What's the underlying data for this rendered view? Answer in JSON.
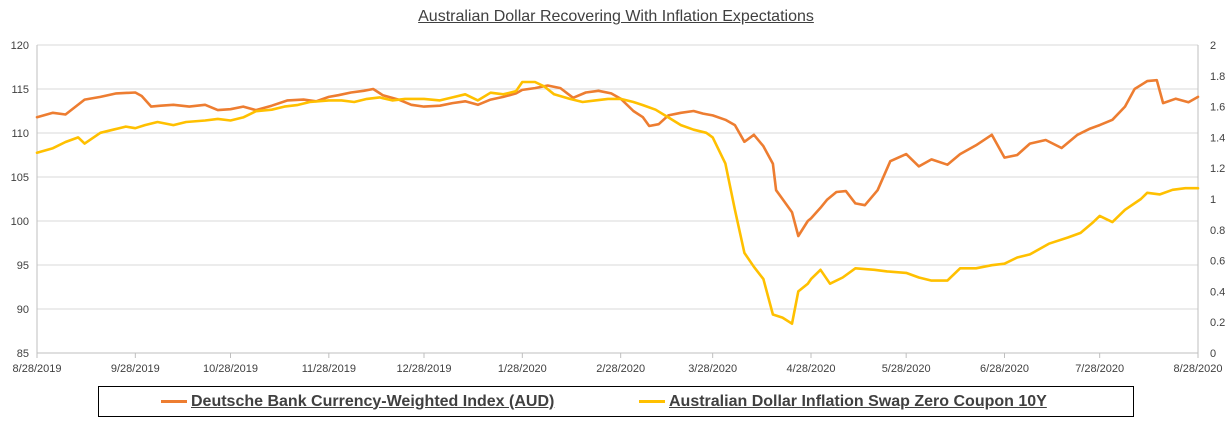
{
  "chart_data": {
    "type": "line",
    "title": "Australian Dollar Recovering With Inflation Expectations",
    "x_tick_labels": [
      "8/28/2019",
      "9/28/2019",
      "10/28/2019",
      "11/28/2019",
      "12/28/2019",
      "1/28/2020",
      "2/28/2020",
      "3/28/2020",
      "4/28/2020",
      "5/28/2020",
      "6/28/2020",
      "7/28/2020",
      "8/28/2020"
    ],
    "y_left": {
      "ylim": [
        85,
        120
      ],
      "ticks": [
        "85",
        "90",
        "95",
        "100",
        "105",
        "110",
        "115",
        "120"
      ]
    },
    "y_right": {
      "ylim": [
        0,
        2
      ],
      "ticks": [
        "0",
        "0.2",
        "0.4",
        "0.6",
        "0.8",
        "1",
        "1.2",
        "1.4",
        "1.6",
        "1.8",
        "2"
      ]
    },
    "grid": true,
    "legend_position": "bottom",
    "series": [
      {
        "name": "Deutsche Bank Currency-Weighted Index (AUD)",
        "axis": "left",
        "color": "#ED7D31",
        "points": [
          [
            "8/28/2019",
            111.8
          ],
          [
            "9/2/2019",
            112.3
          ],
          [
            "9/6/2019",
            112.1
          ],
          [
            "9/12/2019",
            113.8
          ],
          [
            "9/17/2019",
            114.1
          ],
          [
            "9/22/2019",
            114.5
          ],
          [
            "9/28/2019",
            114.6
          ],
          [
            "9/30/2019",
            114.2
          ],
          [
            "10/3/2019",
            113.0
          ],
          [
            "10/6/2019",
            113.1
          ],
          [
            "10/10/2019",
            113.2
          ],
          [
            "10/15/2019",
            113.0
          ],
          [
            "10/20/2019",
            113.2
          ],
          [
            "10/24/2019",
            112.6
          ],
          [
            "10/28/2019",
            112.7
          ],
          [
            "11/1/2019",
            113.0
          ],
          [
            "11/5/2019",
            112.6
          ],
          [
            "11/10/2019",
            113.1
          ],
          [
            "11/15/2019",
            113.7
          ],
          [
            "11/20/2019",
            113.8
          ],
          [
            "11/24/2019",
            113.6
          ],
          [
            "11/28/2019",
            114.1
          ],
          [
            "12/1/2019",
            114.3
          ],
          [
            "12/5/2019",
            114.6
          ],
          [
            "12/9/2019",
            114.8
          ],
          [
            "12/12/2019",
            115.0
          ],
          [
            "12/15/2019",
            114.3
          ],
          [
            "12/20/2019",
            113.8
          ],
          [
            "12/24/2019",
            113.2
          ],
          [
            "12/28/2019",
            113.0
          ],
          [
            "1/2/2020",
            113.1
          ],
          [
            "1/6/2020",
            113.4
          ],
          [
            "1/10/2020",
            113.6
          ],
          [
            "1/14/2020",
            113.2
          ],
          [
            "1/18/2020",
            113.8
          ],
          [
            "1/22/2020",
            114.1
          ],
          [
            "1/26/2020",
            114.5
          ],
          [
            "1/28/2020",
            114.9
          ],
          [
            "2/1/2020",
            115.1
          ],
          [
            "2/5/2020",
            115.4
          ],
          [
            "2/9/2020",
            115.1
          ],
          [
            "2/13/2020",
            114.0
          ],
          [
            "2/17/2020",
            114.6
          ],
          [
            "2/21/2020",
            114.8
          ],
          [
            "2/25/2020",
            114.5
          ],
          [
            "2/28/2020",
            113.9
          ],
          [
            "3/3/2020",
            112.5
          ],
          [
            "3/6/2020",
            111.8
          ],
          [
            "3/8/2020",
            110.8
          ],
          [
            "3/11/2020",
            111.0
          ],
          [
            "3/14/2020",
            112.0
          ],
          [
            "3/18/2020",
            112.3
          ],
          [
            "3/22/2020",
            112.5
          ],
          [
            "3/25/2020",
            112.2
          ],
          [
            "3/28/2020",
            112.0
          ],
          [
            "4/1/2020",
            111.5
          ],
          [
            "4/4/2020",
            110.9
          ],
          [
            "4/7/2020",
            109.0
          ],
          [
            "4/10/2020",
            109.8
          ],
          [
            "4/13/2020",
            108.5
          ],
          [
            "4/16/2020",
            106.5
          ],
          [
            "4/17/2020",
            103.5
          ],
          [
            "4/19/2020",
            102.5
          ],
          [
            "4/22/2020",
            101.0
          ],
          [
            "4/24/2020",
            98.3
          ],
          [
            "4/27/2020",
            100.0
          ],
          [
            "4/28/2020",
            100.3
          ],
          [
            "5/1/2020",
            101.5
          ],
          [
            "5/3/2020",
            102.4
          ],
          [
            "5/6/2020",
            103.3
          ],
          [
            "5/9/2020",
            103.4
          ],
          [
            "5/12/2020",
            102.0
          ],
          [
            "5/15/2020",
            101.8
          ],
          [
            "5/19/2020",
            103.5
          ],
          [
            "5/23/2020",
            106.8
          ],
          [
            "5/28/2020",
            107.6
          ],
          [
            "6/1/2020",
            106.2
          ],
          [
            "6/5/2020",
            107.0
          ],
          [
            "6/10/2020",
            106.4
          ],
          [
            "6/14/2020",
            107.6
          ],
          [
            "6/19/2020",
            108.6
          ],
          [
            "6/24/2020",
            109.8
          ],
          [
            "6/28/2020",
            107.2
          ],
          [
            "7/2/2020",
            107.5
          ],
          [
            "7/6/2020",
            108.8
          ],
          [
            "7/11/2020",
            109.2
          ],
          [
            "7/16/2020",
            108.3
          ],
          [
            "7/21/2020",
            109.8
          ],
          [
            "7/25/2020",
            110.5
          ],
          [
            "7/28/2020",
            110.9
          ],
          [
            "8/1/2020",
            111.5
          ],
          [
            "8/5/2020",
            113.0
          ],
          [
            "8/8/2020",
            115.0
          ],
          [
            "8/12/2020",
            115.9
          ],
          [
            "8/15/2020",
            116.0
          ],
          [
            "8/17/2020",
            113.4
          ],
          [
            "8/21/2020",
            113.9
          ],
          [
            "8/25/2020",
            113.5
          ],
          [
            "8/28/2020",
            114.1
          ]
        ]
      },
      {
        "name": "Australian Dollar Inflation Swap Zero Coupon 10Y",
        "axis": "right",
        "color": "#FFC000",
        "points": [
          [
            "8/28/2019",
            1.3
          ],
          [
            "9/2/2019",
            1.33
          ],
          [
            "9/6/2019",
            1.37
          ],
          [
            "9/10/2019",
            1.4
          ],
          [
            "9/12/2019",
            1.36
          ],
          [
            "9/17/2019",
            1.43
          ],
          [
            "9/21/2019",
            1.45
          ],
          [
            "9/25/2019",
            1.47
          ],
          [
            "9/28/2019",
            1.46
          ],
          [
            "10/1/2019",
            1.48
          ],
          [
            "10/5/2019",
            1.5
          ],
          [
            "10/10/2019",
            1.48
          ],
          [
            "10/14/2019",
            1.5
          ],
          [
            "10/20/2019",
            1.51
          ],
          [
            "10/24/2019",
            1.52
          ],
          [
            "10/28/2019",
            1.51
          ],
          [
            "11/1/2019",
            1.53
          ],
          [
            "11/5/2019",
            1.57
          ],
          [
            "11/10/2019",
            1.58
          ],
          [
            "11/14/2019",
            1.6
          ],
          [
            "11/18/2019",
            1.61
          ],
          [
            "11/22/2019",
            1.63
          ],
          [
            "11/28/2019",
            1.64
          ],
          [
            "12/2/2019",
            1.64
          ],
          [
            "12/6/2019",
            1.63
          ],
          [
            "12/10/2019",
            1.65
          ],
          [
            "12/14/2019",
            1.66
          ],
          [
            "12/18/2019",
            1.64
          ],
          [
            "12/22/2019",
            1.65
          ],
          [
            "12/28/2019",
            1.65
          ],
          [
            "1/2/2020",
            1.64
          ],
          [
            "1/6/2020",
            1.66
          ],
          [
            "1/10/2020",
            1.68
          ],
          [
            "1/14/2020",
            1.64
          ],
          [
            "1/18/2020",
            1.69
          ],
          [
            "1/22/2020",
            1.68
          ],
          [
            "1/26/2020",
            1.7
          ],
          [
            "1/28/2020",
            1.76
          ],
          [
            "2/1/2020",
            1.76
          ],
          [
            "2/4/2020",
            1.73
          ],
          [
            "2/7/2020",
            1.68
          ],
          [
            "2/12/2020",
            1.65
          ],
          [
            "2/16/2020",
            1.63
          ],
          [
            "2/20/2020",
            1.64
          ],
          [
            "2/24/2020",
            1.65
          ],
          [
            "2/28/2020",
            1.65
          ],
          [
            "3/3/2020",
            1.63
          ],
          [
            "3/6/2020",
            1.61
          ],
          [
            "3/10/2020",
            1.58
          ],
          [
            "3/14/2020",
            1.53
          ],
          [
            "3/18/2020",
            1.48
          ],
          [
            "3/22/2020",
            1.45
          ],
          [
            "3/26/2020",
            1.43
          ],
          [
            "3/28/2020",
            1.4
          ],
          [
            "4/1/2020",
            1.23
          ],
          [
            "4/4/2020",
            0.93
          ],
          [
            "4/7/2020",
            0.65
          ],
          [
            "4/10/2020",
            0.56
          ],
          [
            "4/13/2020",
            0.48
          ],
          [
            "4/16/2020",
            0.25
          ],
          [
            "4/19/2020",
            0.23
          ],
          [
            "4/22/2020",
            0.19
          ],
          [
            "4/24/2020",
            0.4
          ],
          [
            "4/27/2020",
            0.45
          ],
          [
            "4/28/2020",
            0.48
          ],
          [
            "5/1/2020",
            0.54
          ],
          [
            "5/4/2020",
            0.45
          ],
          [
            "5/8/2020",
            0.49
          ],
          [
            "5/12/2020",
            0.55
          ],
          [
            "5/18/2020",
            0.54
          ],
          [
            "5/22/2020",
            0.53
          ],
          [
            "5/28/2020",
            0.52
          ],
          [
            "6/1/2020",
            0.49
          ],
          [
            "6/5/2020",
            0.47
          ],
          [
            "6/10/2020",
            0.47
          ],
          [
            "6/14/2020",
            0.55
          ],
          [
            "6/19/2020",
            0.55
          ],
          [
            "6/24/2020",
            0.57
          ],
          [
            "6/28/2020",
            0.58
          ],
          [
            "7/2/2020",
            0.62
          ],
          [
            "7/6/2020",
            0.64
          ],
          [
            "7/12/2020",
            0.71
          ],
          [
            "7/18/2020",
            0.75
          ],
          [
            "7/22/2020",
            0.78
          ],
          [
            "7/26/2020",
            0.85
          ],
          [
            "7/28/2020",
            0.89
          ],
          [
            "8/1/2020",
            0.85
          ],
          [
            "8/5/2020",
            0.93
          ],
          [
            "8/10/2020",
            1.0
          ],
          [
            "8/12/2020",
            1.04
          ],
          [
            "8/16/2020",
            1.03
          ],
          [
            "8/20/2020",
            1.06
          ],
          [
            "8/24/2020",
            1.07
          ],
          [
            "8/28/2020",
            1.07
          ]
        ]
      }
    ]
  }
}
